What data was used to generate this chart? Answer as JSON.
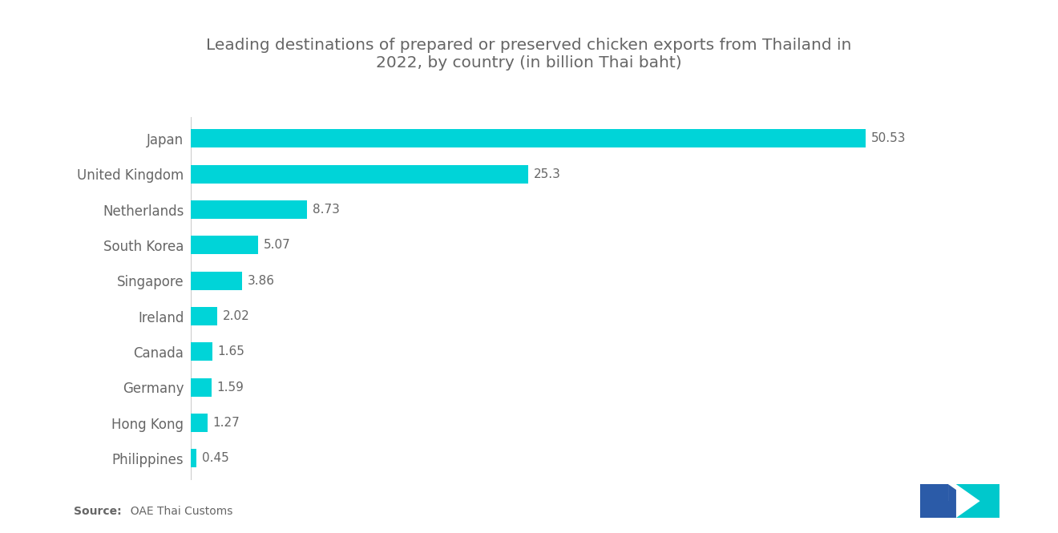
{
  "title": "Leading destinations of prepared or preserved chicken exports from Thailand in\n2022, by country (in billion Thai baht)",
  "title_fontsize": 14.5,
  "source_bold": "Source:",
  "source_normal": "  OAE Thai Customs",
  "categories": [
    "Philippines",
    "Hong Kong",
    "Germany",
    "Canada",
    "Ireland",
    "Singapore",
    "South Korea",
    "Netherlands",
    "United Kingdom",
    "Japan"
  ],
  "values": [
    0.45,
    1.27,
    1.59,
    1.65,
    2.02,
    3.86,
    5.07,
    8.73,
    25.3,
    50.53
  ],
  "bar_color": "#00D4D8",
  "background_color": "#ffffff",
  "label_color": "#666666",
  "value_color": "#666666",
  "xlim": [
    0,
    57
  ],
  "bar_height": 0.52,
  "label_fontsize": 12,
  "value_fontsize": 11,
  "source_fontsize": 10,
  "figsize": [
    13.2,
    6.65
  ],
  "dpi": 100,
  "logo_left_color": "#2B5BA8",
  "logo_right_color": "#00C8CC"
}
